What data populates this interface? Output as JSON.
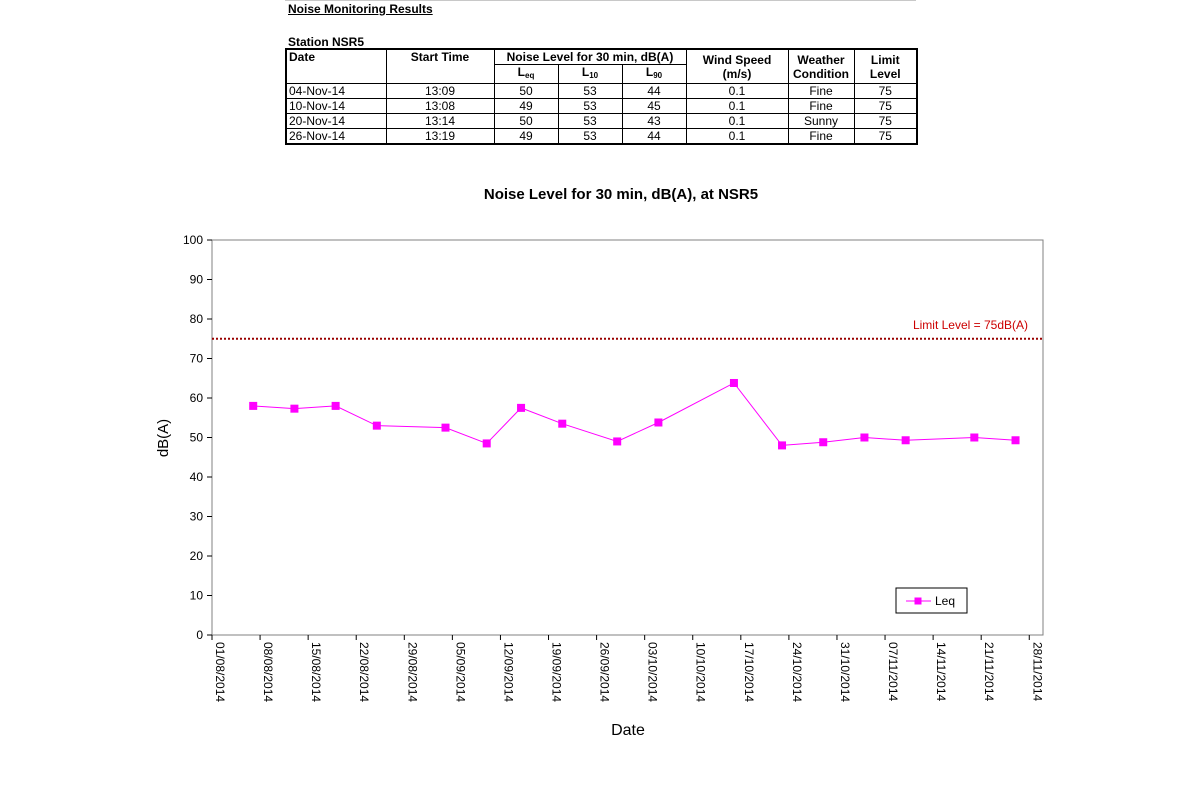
{
  "report": {
    "heading": "Noise Monitoring Results",
    "station": "Station NSR5"
  },
  "table": {
    "headers": {
      "date": "Date",
      "start_time": "Start Time",
      "noise_group": "Noise Level for 30 min, dB(A)",
      "leq_main": "L",
      "leq_sub": "eq",
      "l10_main": "L",
      "l10_sub": "10",
      "l90_main": "L",
      "l90_sub": "90",
      "wind_1": "Wind Speed",
      "wind_2": "(m/s)",
      "weather_1": "Weather",
      "weather_2": "Condition",
      "limit_1": "Limit",
      "limit_2": "Level"
    },
    "rows": [
      {
        "date": "04-Nov-14",
        "time": "13:09",
        "leq": "50",
        "l10": "53",
        "l90": "44",
        "wind": "0.1",
        "weather": "Fine",
        "limit": "75"
      },
      {
        "date": "10-Nov-14",
        "time": "13:08",
        "leq": "49",
        "l10": "53",
        "l90": "45",
        "wind": "0.1",
        "weather": "Fine",
        "limit": "75"
      },
      {
        "date": "20-Nov-14",
        "time": "13:14",
        "leq": "50",
        "l10": "53",
        "l90": "43",
        "wind": "0.1",
        "weather": "Sunny",
        "limit": "75"
      },
      {
        "date": "26-Nov-14",
        "time": "13:19",
        "leq": "49",
        "l10": "53",
        "l90": "44",
        "wind": "0.1",
        "weather": "Fine",
        "limit": "75"
      }
    ]
  },
  "chart_data": {
    "type": "line",
    "title": "Noise Level for 30 min, dB(A), at NSR5",
    "xlabel": "Date",
    "ylabel": "dB(A)",
    "ylim": [
      0,
      100
    ],
    "yticks": [
      0,
      10,
      20,
      30,
      40,
      50,
      60,
      70,
      80,
      90,
      100
    ],
    "xlim": [
      "2014-08-01",
      "2014-11-30"
    ],
    "xtick_labels": [
      "01/08/2014",
      "08/08/2014",
      "15/08/2014",
      "22/08/2014",
      "29/08/2014",
      "05/09/2014",
      "12/09/2014",
      "19/09/2014",
      "26/09/2014",
      "03/10/2014",
      "10/10/2014",
      "17/10/2014",
      "24/10/2014",
      "31/10/2014",
      "07/11/2014",
      "14/11/2014",
      "21/11/2014",
      "28/11/2014"
    ],
    "grid": false,
    "legend": "bottom-right",
    "series": [
      {
        "name": "Leq",
        "color": "#ff00ff",
        "marker": "square",
        "x": [
          "2014-08-07",
          "2014-08-13",
          "2014-08-19",
          "2014-08-25",
          "2014-09-04",
          "2014-09-10",
          "2014-09-15",
          "2014-09-21",
          "2014-09-29",
          "2014-10-05",
          "2014-10-16",
          "2014-10-23",
          "2014-10-29",
          "2014-11-04",
          "2014-11-10",
          "2014-11-20",
          "2014-11-26"
        ],
        "y": [
          58,
          57.3,
          58,
          53,
          52.5,
          48.5,
          57.5,
          53.5,
          49,
          53.8,
          63.8,
          48,
          48.8,
          50,
          49.3,
          50,
          49.3
        ]
      }
    ],
    "limit_line": {
      "value": 75,
      "label": "Limit Level  = 75dB(A)",
      "color": "#990000"
    }
  }
}
